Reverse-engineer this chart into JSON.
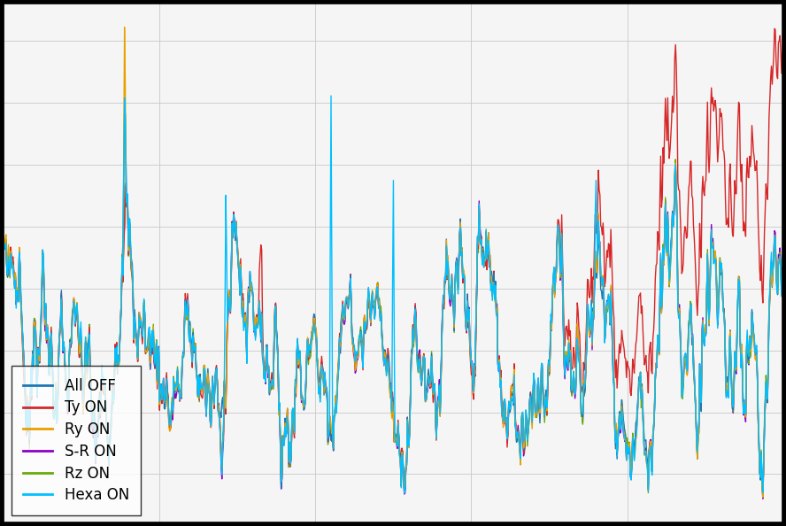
{
  "n_points": 1000,
  "legend_labels": [
    "All OFF",
    "Ty ON",
    "Ry ON",
    "S-R ON",
    "Rz ON",
    "Hexa ON"
  ],
  "line_colors": [
    "#1f77b4",
    "#d62728",
    "#e8a000",
    "#8b00c9",
    "#6aaa0a",
    "#00bfff"
  ],
  "line_widths": [
    1.0,
    1.0,
    1.0,
    1.0,
    1.0,
    1.0
  ],
  "background_color": "#f0f0f0",
  "grid_color": "#cccccc",
  "legend_loc": "lower left",
  "legend_fontsize": 12,
  "fig_facecolor": "#000000",
  "ax_facecolor": "#f5f5f5"
}
